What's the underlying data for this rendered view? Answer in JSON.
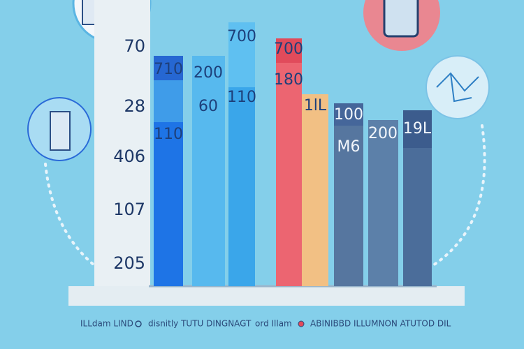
{
  "axis_labels": [
    "70",
    "28",
    "406",
    "107",
    "205"
  ],
  "bars": [
    {
      "labels": [
        "710",
        "110"
      ]
    },
    {
      "labels": [
        "200",
        "60"
      ]
    },
    {
      "labels": [
        "700",
        "110"
      ]
    },
    {
      "labels": [
        "700",
        "180"
      ]
    },
    {
      "labels": [
        "1lL"
      ]
    },
    {
      "labels": [
        "100",
        "M6"
      ]
    },
    {
      "labels": [
        "200"
      ]
    },
    {
      "labels": [
        "19L"
      ]
    }
  ],
  "footer": [
    "ILLdam LIND",
    "disnitly TUTU DINGNAGT",
    "ord Illam",
    "ABINIBBD ILLUMNON ATUTOD DIL"
  ]
}
